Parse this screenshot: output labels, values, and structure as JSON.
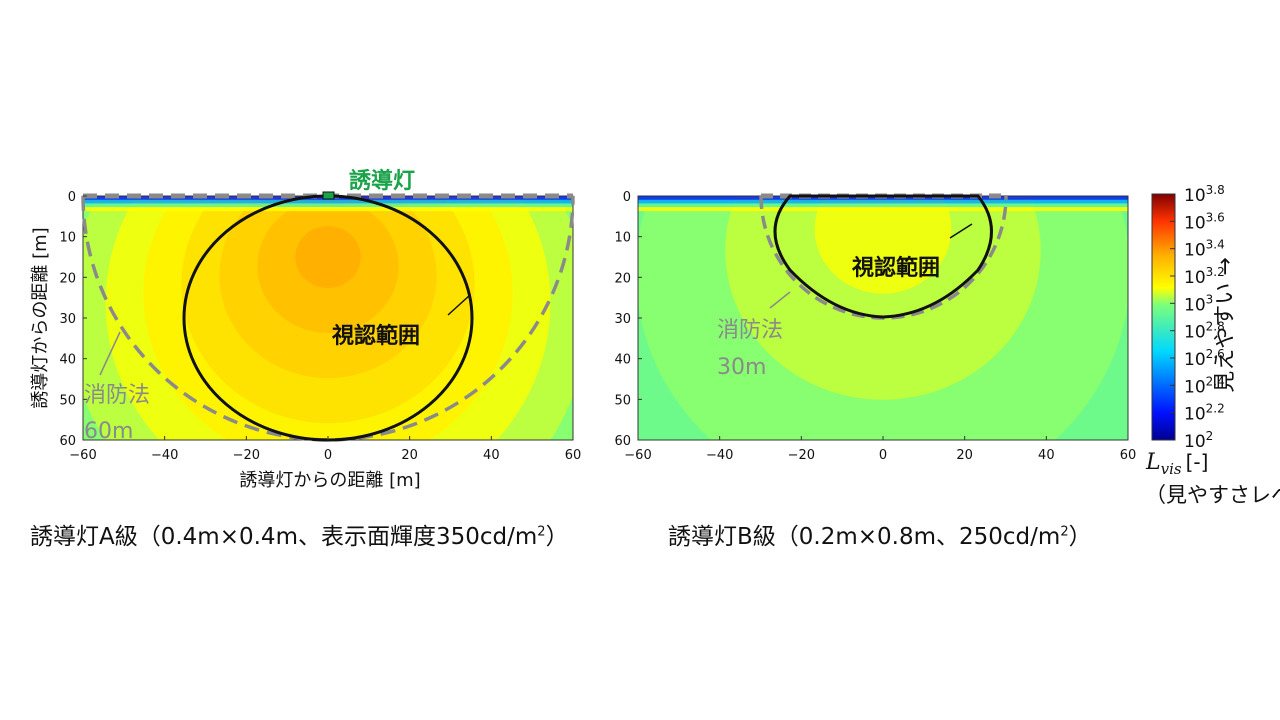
{
  "chart_data": [
    {
      "type": "heatmap",
      "title": "",
      "xlabel": "誘導灯からの距離 [m]",
      "ylabel": "誘導灯からの距離 [m]",
      "xlim": [
        -60,
        60
      ],
      "ylim": [
        0,
        60
      ],
      "y_inverted": true,
      "xticks": [
        -60,
        -40,
        -20,
        0,
        20,
        40,
        60
      ],
      "yticks": [
        0,
        10,
        20,
        30,
        40,
        50,
        60
      ],
      "xtick_labels": [
        "−60",
        "−40",
        "−20",
        "0",
        "20",
        "40",
        "60"
      ],
      "peak_log10_Lvis": 3.35,
      "peak_depth_m": 15,
      "visible_range": {
        "label": "視認範囲",
        "x_range": [
          -35,
          35
        ],
        "y_range": [
          0,
          60
        ]
      },
      "law_range": {
        "label": "消防法",
        "radius_label": "60m",
        "radius_m": 60
      },
      "fixture_label": "誘導灯",
      "caption": {
        "prefix": "誘導灯A級（0.4m×0.4m、表示面輝度350cd/m",
        "sup": "2",
        "suffix": "）"
      }
    },
    {
      "type": "heatmap",
      "xlim": [
        -60,
        60
      ],
      "ylim": [
        0,
        60
      ],
      "y_inverted": true,
      "xticks": [
        -60,
        -40,
        -20,
        0,
        20,
        40,
        60
      ],
      "yticks": [
        0,
        10,
        20,
        30,
        40,
        50,
        60
      ],
      "xtick_labels": [
        "−60",
        "−40",
        "−20",
        "0",
        "20",
        "40",
        "60"
      ],
      "peak_log10_Lvis": 3.12,
      "peak_depth_m": 6,
      "visible_range": {
        "label": "視認範囲",
        "x_range": [
          -25,
          25
        ],
        "y_range": [
          0,
          30
        ]
      },
      "law_range": {
        "label": "消防法",
        "radius_label": "30m",
        "radius_m": 30
      },
      "caption": {
        "prefix": "誘導灯B級（0.2m×0.8m、250cd/m",
        "sup": "2",
        "suffix": "）"
      }
    }
  ],
  "colorbar": {
    "label_symbol": "L",
    "label_subscript": "vis",
    "label_unit": "[-]",
    "label_caption": "（見やすさレベル）",
    "side_label": "見えやすい →",
    "min_exponent": 2,
    "max_exponent": 3.8,
    "ticks": [
      {
        "base": "10",
        "exp": "3.8"
      },
      {
        "base": "10",
        "exp": "3.6"
      },
      {
        "base": "10",
        "exp": "3.4"
      },
      {
        "base": "10",
        "exp": "3.2"
      },
      {
        "base": "10",
        "exp": "3"
      },
      {
        "base": "10",
        "exp": "2.8"
      },
      {
        "base": "10",
        "exp": "2.6"
      },
      {
        "base": "10",
        "exp": "2.4"
      },
      {
        "base": "10",
        "exp": "2.2"
      },
      {
        "base": "10",
        "exp": "2"
      }
    ]
  },
  "colors": {
    "fixture_green": "#1aa34a",
    "law_gray": "#8a8a8a",
    "contour_black": "#111111"
  }
}
